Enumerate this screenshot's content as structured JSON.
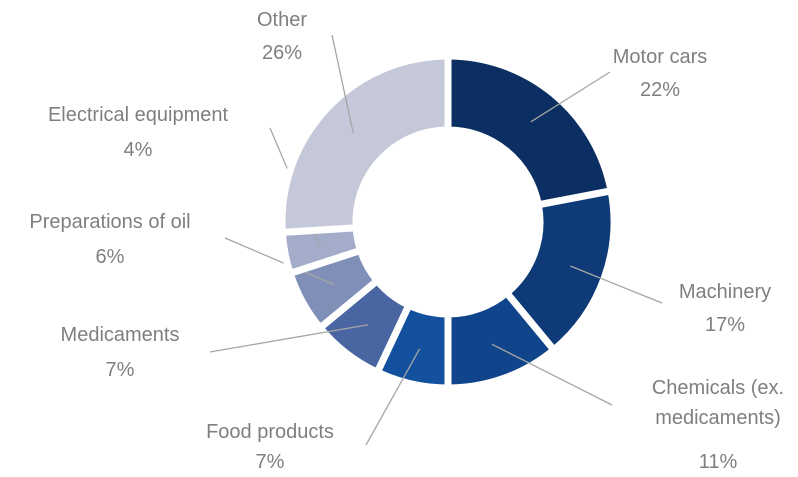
{
  "chart_data": {
    "type": "donut",
    "categories": [
      "Motor cars",
      "Machinery",
      "Chemicals (ex. medicaments)",
      "Food products",
      "Medicaments",
      "Preparations of oil",
      "Electrical equipment",
      "Other"
    ],
    "values": [
      22,
      17,
      11,
      7,
      7,
      6,
      4,
      26
    ],
    "value_labels": [
      "22%",
      "17%",
      "11%",
      "7%",
      "7%",
      "6%",
      "4%",
      "26%"
    ],
    "colors": [
      "#0b2f62",
      "#0e3b78",
      "#10458c",
      "#13509e",
      "#4a66a2",
      "#7f8fb8",
      "#a3adca",
      "#c4c8d9"
    ]
  }
}
